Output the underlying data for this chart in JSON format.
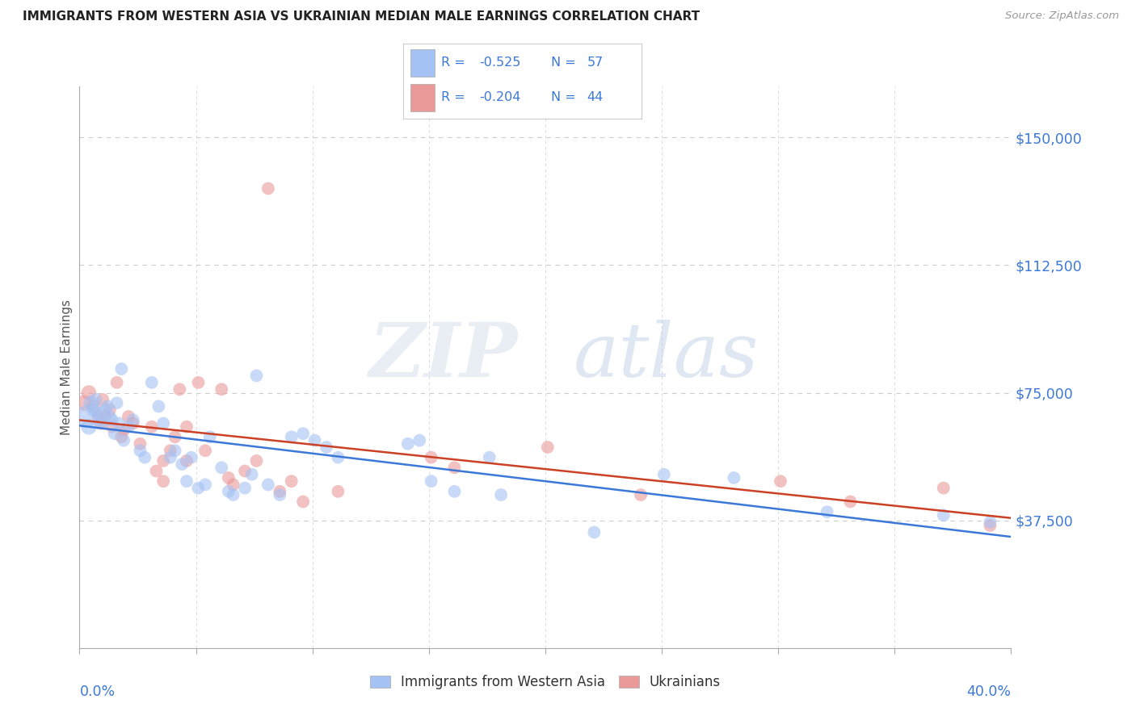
{
  "title": "IMMIGRANTS FROM WESTERN ASIA VS UKRAINIAN MEDIAN MALE EARNINGS CORRELATION CHART",
  "source": "Source: ZipAtlas.com",
  "ylabel": "Median Male Earnings",
  "xlim": [
    0.0,
    0.4
  ],
  "ylim": [
    0,
    165000
  ],
  "watermark": "ZIPatlas",
  "blue_color": "#a4c2f4",
  "pink_color": "#ea9999",
  "blue_line_color": "#3c78d8",
  "pink_line_color": "#cc4125",
  "axis_label_color": "#3c78d8",
  "grid_color": "#cccccc",
  "blue_scatter": [
    [
      0.003,
      68000
    ],
    [
      0.004,
      65000
    ],
    [
      0.005,
      72000
    ],
    [
      0.006,
      70000
    ],
    [
      0.007,
      73000
    ],
    [
      0.008,
      69000
    ],
    [
      0.009,
      67000
    ],
    [
      0.01,
      66000
    ],
    [
      0.011,
      70000
    ],
    [
      0.012,
      71000
    ],
    [
      0.013,
      68000
    ],
    [
      0.014,
      67000
    ],
    [
      0.015,
      63000
    ],
    [
      0.016,
      72000
    ],
    [
      0.017,
      66000
    ],
    [
      0.018,
      82000
    ],
    [
      0.019,
      61000
    ],
    [
      0.021,
      65000
    ],
    [
      0.023,
      67000
    ],
    [
      0.026,
      58000
    ],
    [
      0.028,
      56000
    ],
    [
      0.031,
      78000
    ],
    [
      0.034,
      71000
    ],
    [
      0.036,
      66000
    ],
    [
      0.039,
      56000
    ],
    [
      0.041,
      58000
    ],
    [
      0.044,
      54000
    ],
    [
      0.046,
      49000
    ],
    [
      0.048,
      56000
    ],
    [
      0.051,
      47000
    ],
    [
      0.054,
      48000
    ],
    [
      0.056,
      62000
    ],
    [
      0.061,
      53000
    ],
    [
      0.064,
      46000
    ],
    [
      0.066,
      45000
    ],
    [
      0.071,
      47000
    ],
    [
      0.074,
      51000
    ],
    [
      0.076,
      80000
    ],
    [
      0.081,
      48000
    ],
    [
      0.086,
      45000
    ],
    [
      0.091,
      62000
    ],
    [
      0.096,
      63000
    ],
    [
      0.101,
      61000
    ],
    [
      0.106,
      59000
    ],
    [
      0.111,
      56000
    ],
    [
      0.141,
      60000
    ],
    [
      0.146,
      61000
    ],
    [
      0.151,
      49000
    ],
    [
      0.161,
      46000
    ],
    [
      0.176,
      56000
    ],
    [
      0.181,
      45000
    ],
    [
      0.221,
      34000
    ],
    [
      0.251,
      51000
    ],
    [
      0.281,
      50000
    ],
    [
      0.321,
      40000
    ],
    [
      0.371,
      39000
    ],
    [
      0.391,
      37000
    ]
  ],
  "blue_sizes": [
    400,
    200,
    180,
    150,
    130,
    130,
    130,
    130,
    130,
    130,
    130,
    130,
    130,
    130,
    130,
    130,
    130,
    130,
    130,
    130,
    130,
    130,
    130,
    130,
    130,
    130,
    130,
    130,
    130,
    130,
    130,
    130,
    130,
    130,
    130,
    130,
    130,
    130,
    130,
    130,
    130,
    130,
    130,
    130,
    130,
    130,
    130,
    130,
    130,
    130,
    130,
    130,
    130,
    130,
    130,
    130,
    130
  ],
  "pink_scatter": [
    [
      0.002,
      72000
    ],
    [
      0.004,
      75000
    ],
    [
      0.006,
      71000
    ],
    [
      0.008,
      68000
    ],
    [
      0.009,
      66000
    ],
    [
      0.01,
      73000
    ],
    [
      0.011,
      68000
    ],
    [
      0.013,
      70000
    ],
    [
      0.014,
      65000
    ],
    [
      0.016,
      78000
    ],
    [
      0.018,
      62000
    ],
    [
      0.019,
      64000
    ],
    [
      0.021,
      68000
    ],
    [
      0.023,
      66000
    ],
    [
      0.026,
      60000
    ],
    [
      0.031,
      65000
    ],
    [
      0.033,
      52000
    ],
    [
      0.036,
      55000
    ],
    [
      0.039,
      58000
    ],
    [
      0.041,
      62000
    ],
    [
      0.043,
      76000
    ],
    [
      0.046,
      55000
    ],
    [
      0.051,
      78000
    ],
    [
      0.054,
      58000
    ],
    [
      0.061,
      76000
    ],
    [
      0.064,
      50000
    ],
    [
      0.066,
      48000
    ],
    [
      0.071,
      52000
    ],
    [
      0.076,
      55000
    ],
    [
      0.081,
      135000
    ],
    [
      0.086,
      46000
    ],
    [
      0.091,
      49000
    ],
    [
      0.096,
      43000
    ],
    [
      0.111,
      46000
    ],
    [
      0.151,
      56000
    ],
    [
      0.161,
      53000
    ],
    [
      0.201,
      59000
    ],
    [
      0.241,
      45000
    ],
    [
      0.301,
      49000
    ],
    [
      0.331,
      43000
    ],
    [
      0.371,
      47000
    ],
    [
      0.391,
      36000
    ],
    [
      0.046,
      65000
    ],
    [
      0.036,
      49000
    ]
  ],
  "pink_sizes": [
    200,
    180,
    150,
    130,
    130,
    130,
    130,
    130,
    130,
    130,
    130,
    130,
    130,
    130,
    130,
    130,
    130,
    130,
    130,
    130,
    130,
    130,
    130,
    130,
    130,
    130,
    130,
    130,
    130,
    130,
    130,
    130,
    130,
    130,
    130,
    130,
    130,
    130,
    130,
    130,
    130,
    130,
    130,
    130
  ]
}
